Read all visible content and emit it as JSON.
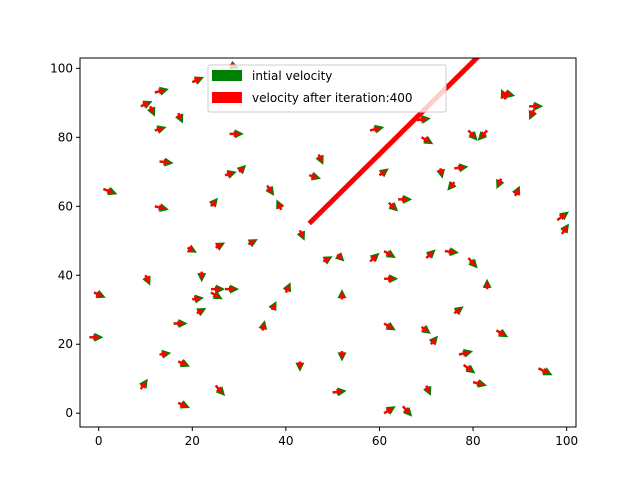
{
  "chart_data": {
    "type": "quiver",
    "title": "",
    "xlabel": "",
    "ylabel": "",
    "xlim": [
      -4,
      102
    ],
    "ylim": [
      -4,
      103
    ],
    "xticks": [
      0,
      20,
      40,
      60,
      80,
      100
    ],
    "yticks": [
      0,
      20,
      40,
      60,
      80,
      100
    ],
    "legend": {
      "placement": "top-center",
      "entries": [
        {
          "label": "intial velocity",
          "color": "#008000"
        },
        {
          "label": "velocity  after iteration:400",
          "color": "#ff0000"
        }
      ]
    },
    "colors": {
      "initial": "#008000",
      "final": "#ff0000",
      "axes": "#000000"
    },
    "arrow_scale": 1,
    "points": [
      {
        "x": -1,
        "y": 35,
        "u": 2.5,
        "v": -1.5
      },
      {
        "x": -2,
        "y": 22,
        "u": 3,
        "v": 0
      },
      {
        "x": 1,
        "y": 65,
        "u": 3,
        "v": -1.5
      },
      {
        "x": 10,
        "y": 40,
        "u": 1,
        "v": -3
      },
      {
        "x": 9,
        "y": 7,
        "u": 1.5,
        "v": 3
      },
      {
        "x": 9,
        "y": 89,
        "u": 2.5,
        "v": 1.5
      },
      {
        "x": 12,
        "y": 93,
        "u": 3,
        "v": 1
      },
      {
        "x": 11,
        "y": 89,
        "u": 1,
        "v": -3
      },
      {
        "x": 12,
        "y": 82,
        "u": 2.5,
        "v": 1
      },
      {
        "x": 13,
        "y": 73,
        "u": 3,
        "v": -0.5
      },
      {
        "x": 12,
        "y": 60,
        "u": 3,
        "v": -1
      },
      {
        "x": 17,
        "y": 87,
        "u": 1,
        "v": -3
      },
      {
        "x": 13,
        "y": 17,
        "u": 2.5,
        "v": 0.5
      },
      {
        "x": 16,
        "y": 26,
        "u": 3,
        "v": 0
      },
      {
        "x": 17,
        "y": 15,
        "u": 2.5,
        "v": -1.5
      },
      {
        "x": 17,
        "y": 3,
        "u": 2.5,
        "v": -1.5
      },
      {
        "x": 20,
        "y": 96,
        "u": 2.5,
        "v": 1.5
      },
      {
        "x": 19,
        "y": 48,
        "u": 2,
        "v": -1.5
      },
      {
        "x": 20,
        "y": 33,
        "u": 2.5,
        "v": 0.5
      },
      {
        "x": 22,
        "y": 41,
        "u": 0,
        "v": -3
      },
      {
        "x": 21,
        "y": 29,
        "u": 2,
        "v": 1.5
      },
      {
        "x": 24,
        "y": 60,
        "u": 1.5,
        "v": 2.5
      },
      {
        "x": 25,
        "y": 48,
        "u": 2,
        "v": 1.5
      },
      {
        "x": 24,
        "y": 35,
        "u": 2.5,
        "v": -2
      },
      {
        "x": 24,
        "y": 36,
        "u": 3,
        "v": 0
      },
      {
        "x": 25,
        "y": 8,
        "u": 2,
        "v": -3
      },
      {
        "x": 28,
        "y": 101,
        "u": 2,
        "v": -1
      },
      {
        "x": 28,
        "y": 81,
        "u": 3,
        "v": 0
      },
      {
        "x": 27,
        "y": 69,
        "u": 2.5,
        "v": 1
      },
      {
        "x": 30,
        "y": 70,
        "u": 1.5,
        "v": 2
      },
      {
        "x": 27,
        "y": 36,
        "u": 3,
        "v": 0
      },
      {
        "x": 32,
        "y": 49,
        "u": 2,
        "v": 1.5
      },
      {
        "x": 36,
        "y": 66,
        "u": 1.5,
        "v": -3
      },
      {
        "x": 35,
        "y": 24,
        "u": 0.5,
        "v": 3
      },
      {
        "x": 37,
        "y": 30,
        "u": 1,
        "v": 2.5
      },
      {
        "x": 39,
        "y": 59,
        "u": -1,
        "v": 3
      },
      {
        "x": 40,
        "y": 35,
        "u": 1,
        "v": 3
      },
      {
        "x": 43,
        "y": 15,
        "u": 0,
        "v": -3
      },
      {
        "x": 43,
        "y": 53,
        "u": 1,
        "v": -3
      },
      {
        "x": 45,
        "y": 69,
        "u": 2.5,
        "v": -1
      },
      {
        "x": 47,
        "y": 75,
        "u": 1,
        "v": -3
      },
      {
        "x": 48,
        "y": 44,
        "u": 2,
        "v": 1.5
      },
      {
        "x": 51,
        "y": 46,
        "u": 1.5,
        "v": -2
      },
      {
        "x": 52,
        "y": 18,
        "u": 0,
        "v": -3
      },
      {
        "x": 52,
        "y": 33,
        "u": 0,
        "v": 3
      },
      {
        "x": 50,
        "y": 6,
        "u": 3,
        "v": 0.5
      },
      {
        "x": 58,
        "y": 82,
        "u": 3,
        "v": 1
      },
      {
        "x": 60,
        "y": 69,
        "u": 2,
        "v": 2
      },
      {
        "x": 58,
        "y": 44,
        "u": 2,
        "v": 2.5
      },
      {
        "x": 61,
        "y": 47,
        "u": 2.5,
        "v": -2
      },
      {
        "x": 61,
        "y": 39,
        "u": 3,
        "v": 0
      },
      {
        "x": 62,
        "y": 61,
        "u": 2,
        "v": -2.5
      },
      {
        "x": 64,
        "y": 62,
        "u": 3,
        "v": 0
      },
      {
        "x": 61,
        "y": 26,
        "u": 2.5,
        "v": -2
      },
      {
        "x": 61,
        "y": 0,
        "u": 2.5,
        "v": 2
      },
      {
        "x": 65,
        "y": 2,
        "u": 2,
        "v": -3
      },
      {
        "x": 68,
        "y": 85,
        "u": 3,
        "v": 0.5
      },
      {
        "x": 69,
        "y": 80,
        "u": 2.5,
        "v": -2
      },
      {
        "x": 70,
        "y": 45,
        "u": 2,
        "v": 2.5
      },
      {
        "x": 69,
        "y": 25,
        "u": 2,
        "v": -2
      },
      {
        "x": 71,
        "y": 20,
        "u": 1.5,
        "v": 2.5
      },
      {
        "x": 70,
        "y": 8,
        "u": 1,
        "v": -3
      },
      {
        "x": 73,
        "y": 71,
        "u": 0.5,
        "v": -3
      },
      {
        "x": 76,
        "y": 71,
        "u": 3,
        "v": 0.5
      },
      {
        "x": 76,
        "y": 67,
        "u": -1.5,
        "v": -2.5
      },
      {
        "x": 74,
        "y": 47,
        "u": 3,
        "v": -0.5
      },
      {
        "x": 76,
        "y": 29,
        "u": 2,
        "v": 2
      },
      {
        "x": 77,
        "y": 17,
        "u": 3,
        "v": 1
      },
      {
        "x": 78,
        "y": 14,
        "u": 2.5,
        "v": -2.5
      },
      {
        "x": 80,
        "y": 9,
        "u": 3,
        "v": -1
      },
      {
        "x": 79,
        "y": 45,
        "u": 2,
        "v": -3
      },
      {
        "x": 79,
        "y": 82,
        "u": 2,
        "v": -3
      },
      {
        "x": 83,
        "y": 82,
        "u": -2,
        "v": -3
      },
      {
        "x": 83,
        "y": 36,
        "u": 0,
        "v": 3
      },
      {
        "x": 85,
        "y": 24,
        "u": 2.5,
        "v": -2
      },
      {
        "x": 86,
        "y": 68,
        "u": -1,
        "v": -3
      },
      {
        "x": 86,
        "y": 93,
        "u": 3,
        "v": -1
      },
      {
        "x": 87,
        "y": 91,
        "u": -1,
        "v": 3
      },
      {
        "x": 89,
        "y": 63,
        "u": 1,
        "v": 3
      },
      {
        "x": 92,
        "y": 89,
        "u": 3,
        "v": 0
      },
      {
        "x": 93,
        "y": 88,
        "u": -1,
        "v": -3
      },
      {
        "x": 94,
        "y": 13,
        "u": 3,
        "v": -2
      },
      {
        "x": 98,
        "y": 56,
        "u": 2.5,
        "v": 2.5
      },
      {
        "x": 99,
        "y": 52,
        "u": 1.5,
        "v": 3
      }
    ],
    "outlier_arrows": [
      {
        "x": 45,
        "y": 55,
        "dx": 41,
        "dy": 55
      }
    ]
  }
}
